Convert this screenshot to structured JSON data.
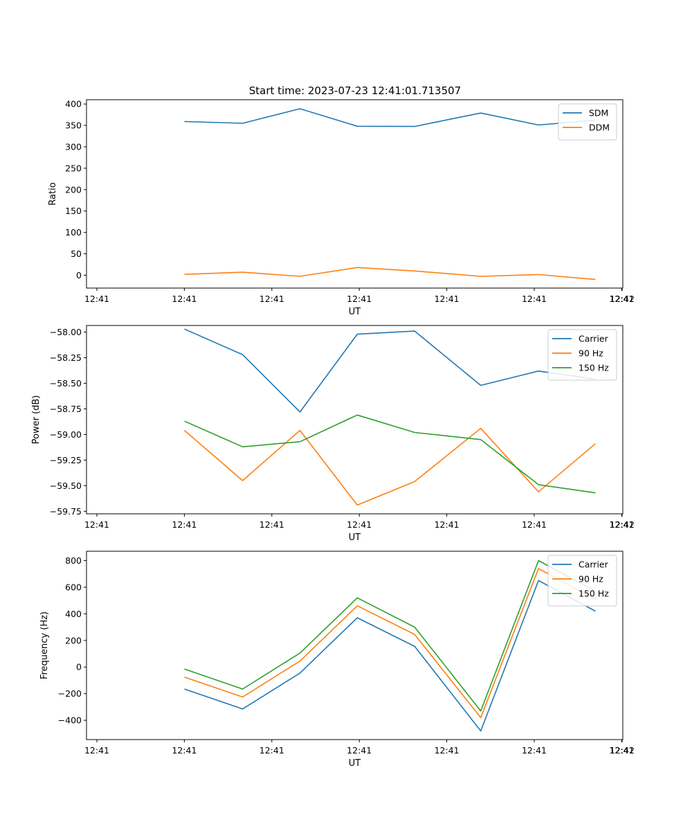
{
  "figure_title": "Start time: 2023-07-23 12:41:01.713507",
  "chart_data": [
    {
      "type": "line",
      "xlabel": "UT",
      "ylabel": "Ratio",
      "x_tick_labels": [
        "12:41",
        "12:41",
        "12:41",
        "12:41",
        "12:41",
        "12:41",
        "12:41"
      ],
      "x_last_tick_label": "12:42",
      "x_data_range": [
        1.5,
        10.2
      ],
      "x": [
        2.0,
        3.33,
        4.64,
        5.95,
        7.26,
        8.77,
        10.09,
        11.39
      ],
      "x_note": "x in seconds after 12:41:00; ticks every 2 s from 12:41:00 to 12:42:00 (rendered as axis fractions)",
      "ylim": [
        -30,
        410
      ],
      "yticks": [
        0,
        50,
        100,
        150,
        200,
        250,
        300,
        350,
        400
      ],
      "legend_position": "top-right",
      "series": [
        {
          "name": "SDM",
          "color": "#1f77b4",
          "values": [
            359,
            355,
            389,
            348,
            347.5,
            379,
            351,
            362
          ]
        },
        {
          "name": "DDM",
          "color": "#ff7f0e",
          "values": [
            2,
            7,
            -2.5,
            18,
            10,
            -2.5,
            1.5,
            -10
          ]
        }
      ]
    },
    {
      "type": "line",
      "xlabel": "UT",
      "ylabel": "Power (dB)",
      "x_tick_labels": [
        "12:41",
        "12:41",
        "12:41",
        "12:41",
        "12:41",
        "12:41",
        "12:41"
      ],
      "x_last_tick_label": "12:42",
      "ylim": [
        -59.775,
        -57.935
      ],
      "yticks": [
        -59.75,
        -59.5,
        -59.25,
        -59.0,
        -58.75,
        -58.5,
        -58.25,
        -58.0
      ],
      "ytick_labels": [
        "−59.75",
        "−59.50",
        "−59.25",
        "−59.00",
        "−58.75",
        "−58.50",
        "−58.25",
        "−58.00"
      ],
      "legend_position": "top-right",
      "series": [
        {
          "name": "Carrier",
          "color": "#1f77b4",
          "values": [
            -57.97,
            -58.22,
            -58.78,
            -58.02,
            -57.99,
            -58.52,
            -58.38,
            -58.46
          ]
        },
        {
          "name": "90 Hz",
          "color": "#ff7f0e",
          "values": [
            -58.96,
            -59.45,
            -58.96,
            -59.69,
            -59.46,
            -58.94,
            -59.56,
            -59.09
          ]
        },
        {
          "name": "150 Hz",
          "color": "#2ca02c",
          "values": [
            -58.87,
            -59.12,
            -59.07,
            -58.81,
            -58.98,
            -59.05,
            -59.49,
            -59.57
          ]
        }
      ]
    },
    {
      "type": "line",
      "xlabel": "UT",
      "ylabel": "Frequency (Hz)",
      "x_tick_labels": [
        "12:41",
        "12:41",
        "12:41",
        "12:41",
        "12:41",
        "12:41",
        "12:41"
      ],
      "x_last_tick_label": "12:42",
      "ylim": [
        -545,
        870
      ],
      "yticks": [
        -400,
        -200,
        0,
        200,
        400,
        600,
        800
      ],
      "ytick_labels": [
        "−400",
        "−200",
        "0",
        "200",
        "400",
        "600",
        "800"
      ],
      "legend_position": "top-right",
      "series": [
        {
          "name": "Carrier",
          "color": "#1f77b4",
          "values": [
            -165,
            -315,
            -45,
            370,
            155,
            -480,
            650,
            420
          ]
        },
        {
          "name": "90 Hz",
          "color": "#ff7f0e",
          "values": [
            -75,
            -225,
            45,
            460,
            245,
            -380,
            740,
            510
          ]
        },
        {
          "name": "150 Hz",
          "color": "#2ca02c",
          "values": [
            -15,
            -165,
            105,
            520,
            300,
            -330,
            800,
            570
          ]
        }
      ]
    }
  ]
}
